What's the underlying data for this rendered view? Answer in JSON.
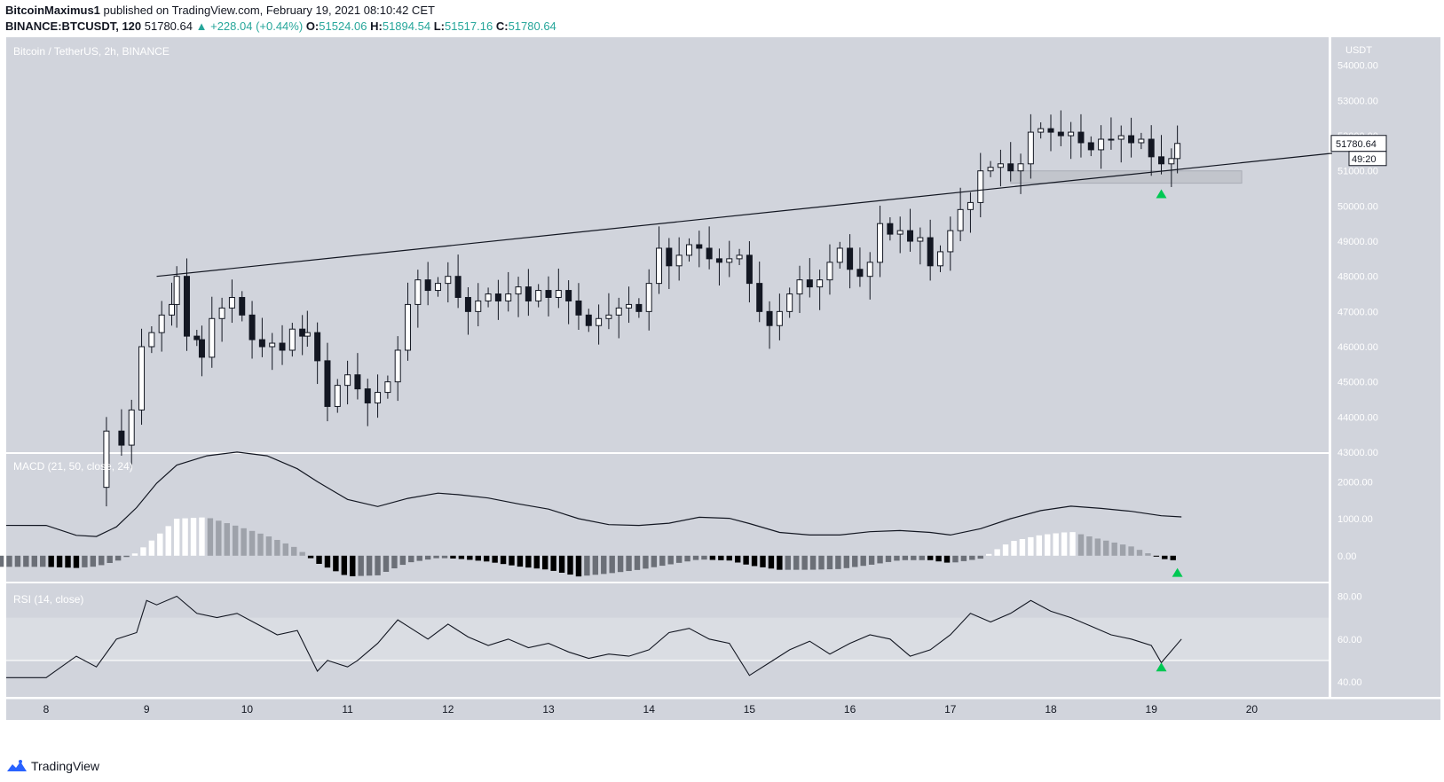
{
  "header": {
    "author": "BitcoinMaximus1",
    "published": "published on TradingView.com, February 19, 2021 08:10:42 CET",
    "symbol": "BINANCE:BTCUSDT, 120",
    "last": "51780.64",
    "change": "▲ +228.04 (+0.44%)",
    "o_label": "O:",
    "o": "51524.06",
    "h_label": "H:",
    "h": "51894.54",
    "l_label": "L:",
    "l": "51517.16",
    "c_label": "C:",
    "c": "51780.64"
  },
  "footer": {
    "brand": "TradingView"
  },
  "colors": {
    "pane_bg": "#d1d4dc",
    "rsi_band": "#dadde3",
    "candle_up": "#ffffff",
    "candle_down": "#131722",
    "marker": "#00c853",
    "zone": "#c2c5cc",
    "text": "#131722"
  },
  "chart_data": [
    {
      "type": "candlestick",
      "title": "Bitcoin / TetherUS, 2h, BINANCE",
      "unit_label": "USDT",
      "x_ticks": [
        "8",
        "9",
        "10",
        "11",
        "12",
        "13",
        "14",
        "15",
        "16",
        "17",
        "18",
        "19",
        "20"
      ],
      "y_ticks": [
        "54000.00",
        "53000.00",
        "52000.00",
        "51000.00",
        "50000.00",
        "49000.00",
        "48000.00",
        "47000.00",
        "46000.00",
        "45000.00",
        "44000.00",
        "43000.00"
      ],
      "ylim": [
        43000,
        54800
      ],
      "last_price_label": "51780.64",
      "countdown_label": "49:20",
      "trendline": {
        "from": {
          "day": 9.1,
          "price": 48000
        },
        "to": {
          "day": 20.8,
          "price": 51500
        }
      },
      "support_zone": {
        "from_day": 17.6,
        "to_day": 19.9,
        "low": 50650,
        "high": 51000
      },
      "markers": [
        {
          "day": 19.1,
          "price": 50350
        }
      ],
      "close_path": [
        [
          8.55,
          42000
        ],
        [
          8.6,
          43600
        ],
        [
          8.75,
          43200
        ],
        [
          8.85,
          44200
        ],
        [
          8.95,
          46000
        ],
        [
          9.05,
          46400
        ],
        [
          9.15,
          46900
        ],
        [
          9.25,
          47200
        ],
        [
          9.3,
          48000
        ],
        [
          9.4,
          46300
        ],
        [
          9.5,
          46200
        ],
        [
          9.55,
          45700
        ],
        [
          9.65,
          46800
        ],
        [
          9.75,
          47100
        ],
        [
          9.85,
          47400
        ],
        [
          9.95,
          46900
        ],
        [
          10.05,
          46200
        ],
        [
          10.15,
          46000
        ],
        [
          10.25,
          46100
        ],
        [
          10.35,
          45900
        ],
        [
          10.45,
          46500
        ],
        [
          10.55,
          46300
        ],
        [
          10.6,
          46400
        ],
        [
          10.7,
          45600
        ],
        [
          10.8,
          44300
        ],
        [
          10.9,
          44900
        ],
        [
          11.0,
          45200
        ],
        [
          11.1,
          44800
        ],
        [
          11.2,
          44400
        ],
        [
          11.3,
          44700
        ],
        [
          11.4,
          45000
        ],
        [
          11.5,
          45900
        ],
        [
          11.6,
          47200
        ],
        [
          11.7,
          47900
        ],
        [
          11.8,
          47600
        ],
        [
          11.9,
          47800
        ],
        [
          12.0,
          48000
        ],
        [
          12.1,
          47400
        ],
        [
          12.2,
          47000
        ],
        [
          12.3,
          47300
        ],
        [
          12.4,
          47500
        ],
        [
          12.5,
          47300
        ],
        [
          12.6,
          47500
        ],
        [
          12.7,
          47700
        ],
        [
          12.8,
          47300
        ],
        [
          12.9,
          47600
        ],
        [
          13.0,
          47400
        ],
        [
          13.1,
          47600
        ],
        [
          13.2,
          47300
        ],
        [
          13.3,
          46900
        ],
        [
          13.4,
          46600
        ],
        [
          13.5,
          46800
        ],
        [
          13.6,
          46900
        ],
        [
          13.7,
          47100
        ],
        [
          13.8,
          47200
        ],
        [
          13.9,
          47000
        ],
        [
          14.0,
          47800
        ],
        [
          14.1,
          48800
        ],
        [
          14.2,
          48300
        ],
        [
          14.3,
          48600
        ],
        [
          14.4,
          48900
        ],
        [
          14.5,
          48800
        ],
        [
          14.6,
          48500
        ],
        [
          14.7,
          48400
        ],
        [
          14.8,
          48500
        ],
        [
          14.9,
          48600
        ],
        [
          15.0,
          47800
        ],
        [
          15.1,
          47000
        ],
        [
          15.2,
          46600
        ],
        [
          15.3,
          47000
        ],
        [
          15.4,
          47500
        ],
        [
          15.5,
          47900
        ],
        [
          15.6,
          47700
        ],
        [
          15.7,
          47900
        ],
        [
          15.8,
          48400
        ],
        [
          15.9,
          48800
        ],
        [
          16.0,
          48200
        ],
        [
          16.1,
          48000
        ],
        [
          16.2,
          48400
        ],
        [
          16.3,
          49500
        ],
        [
          16.4,
          49200
        ],
        [
          16.5,
          49300
        ],
        [
          16.6,
          49000
        ],
        [
          16.7,
          49100
        ],
        [
          16.8,
          48300
        ],
        [
          16.9,
          48700
        ],
        [
          17.0,
          49300
        ],
        [
          17.1,
          49900
        ],
        [
          17.2,
          50100
        ],
        [
          17.3,
          51000
        ],
        [
          17.4,
          51100
        ],
        [
          17.5,
          51200
        ],
        [
          17.6,
          51000
        ],
        [
          17.7,
          51200
        ],
        [
          17.8,
          52100
        ],
        [
          17.9,
          52200
        ],
        [
          18.0,
          52100
        ],
        [
          18.1,
          52000
        ],
        [
          18.2,
          52100
        ],
        [
          18.3,
          51800
        ],
        [
          18.4,
          51600
        ],
        [
          18.5,
          51900
        ],
        [
          18.6,
          51900
        ],
        [
          18.7,
          52000
        ],
        [
          18.8,
          51800
        ],
        [
          18.9,
          51900
        ],
        [
          19.0,
          51400
        ],
        [
          19.1,
          51200
        ],
        [
          19.2,
          51350
        ],
        [
          19.26,
          51780
        ]
      ]
    },
    {
      "type": "line",
      "title": "MACD (21, 50, close, 24)",
      "y_ticks": [
        "2000.00",
        "1000.00",
        "0.00"
      ],
      "ylim": [
        -700,
        2750
      ],
      "markers": [
        {
          "day": 19.26,
          "value": -450
        }
      ],
      "series": [
        {
          "role": "macd",
          "x": [
            8.0,
            8.3,
            8.5,
            8.7,
            8.9,
            9.1,
            9.3,
            9.6,
            9.9,
            10.2,
            10.5,
            10.7,
            11.0,
            11.3,
            11.6,
            11.9,
            12.1,
            12.4,
            12.7,
            13.0,
            13.3,
            13.6,
            13.9,
            14.2,
            14.5,
            14.8,
            15.0,
            15.3,
            15.6,
            15.9,
            16.2,
            16.5,
            16.8,
            17.0,
            17.3,
            17.6,
            17.9,
            18.2,
            18.5,
            18.8,
            19.1,
            19.3
          ],
          "values": [
            820,
            550,
            520,
            780,
            1300,
            1960,
            2450,
            2700,
            2800,
            2700,
            2350,
            2000,
            1520,
            1330,
            1550,
            1690,
            1650,
            1560,
            1400,
            1260,
            1000,
            840,
            820,
            880,
            1040,
            1010,
            870,
            630,
            560,
            560,
            650,
            680,
            630,
            560,
            730,
            1000,
            1220,
            1340,
            1280,
            1200,
            1080,
            1050
          ]
        },
        {
          "role": "histogram",
          "x": [
            8.0,
            8.3,
            8.5,
            8.7,
            8.9,
            9.1,
            9.3,
            9.6,
            9.9,
            10.2,
            10.5,
            10.7,
            11.0,
            11.3,
            11.6,
            11.9,
            12.1,
            12.4,
            12.7,
            13.0,
            13.3,
            13.6,
            13.9,
            14.2,
            14.5,
            14.8,
            15.0,
            15.3,
            15.6,
            15.9,
            16.2,
            16.5,
            16.8,
            17.0,
            17.3,
            17.6,
            17.9,
            18.2,
            18.5,
            18.8,
            19.1,
            19.3
          ],
          "values": [
            -300,
            -330,
            -290,
            -150,
            80,
            520,
            1000,
            1040,
            800,
            540,
            200,
            -200,
            -560,
            -530,
            -190,
            -60,
            -80,
            -160,
            -290,
            -380,
            -560,
            -480,
            -380,
            -240,
            -100,
            -130,
            -260,
            -380,
            -380,
            -360,
            -250,
            -120,
            -120,
            -200,
            -80,
            380,
            560,
            650,
            440,
            250,
            -80,
            -150
          ]
        }
      ]
    },
    {
      "type": "line",
      "title": "RSI (14, close)",
      "y_ticks": [
        "80.00",
        "60.00",
        "40.00"
      ],
      "ylim": [
        33,
        86
      ],
      "bands": [
        50,
        70
      ],
      "markers": [
        {
          "day": 19.1,
          "value": 47
        }
      ],
      "series": [
        {
          "role": "rsi",
          "x": [
            8.0,
            8.3,
            8.5,
            8.7,
            8.9,
            9.0,
            9.1,
            9.3,
            9.5,
            9.7,
            9.9,
            10.1,
            10.3,
            10.5,
            10.7,
            10.8,
            11.0,
            11.1,
            11.3,
            11.5,
            11.6,
            11.8,
            12.0,
            12.2,
            12.4,
            12.6,
            12.8,
            13.0,
            13.2,
            13.4,
            13.6,
            13.8,
            14.0,
            14.2,
            14.4,
            14.6,
            14.8,
            15.0,
            15.2,
            15.4,
            15.6,
            15.8,
            16.0,
            16.2,
            16.4,
            16.6,
            16.8,
            17.0,
            17.2,
            17.4,
            17.6,
            17.8,
            18.0,
            18.2,
            18.4,
            18.6,
            18.8,
            19.0,
            19.1,
            19.3
          ],
          "values": [
            42,
            52,
            47,
            60,
            63,
            78,
            76,
            80,
            72,
            70,
            72,
            67,
            62,
            64,
            45,
            50,
            47,
            50,
            58,
            69,
            66,
            60,
            67,
            61,
            57,
            60,
            56,
            58,
            54,
            51,
            53,
            52,
            55,
            63,
            65,
            60,
            58,
            43,
            49,
            55,
            59,
            53,
            58,
            62,
            60,
            52,
            55,
            62,
            72,
            68,
            72,
            78,
            73,
            70,
            66,
            62,
            60,
            57,
            49,
            60
          ]
        }
      ]
    }
  ]
}
